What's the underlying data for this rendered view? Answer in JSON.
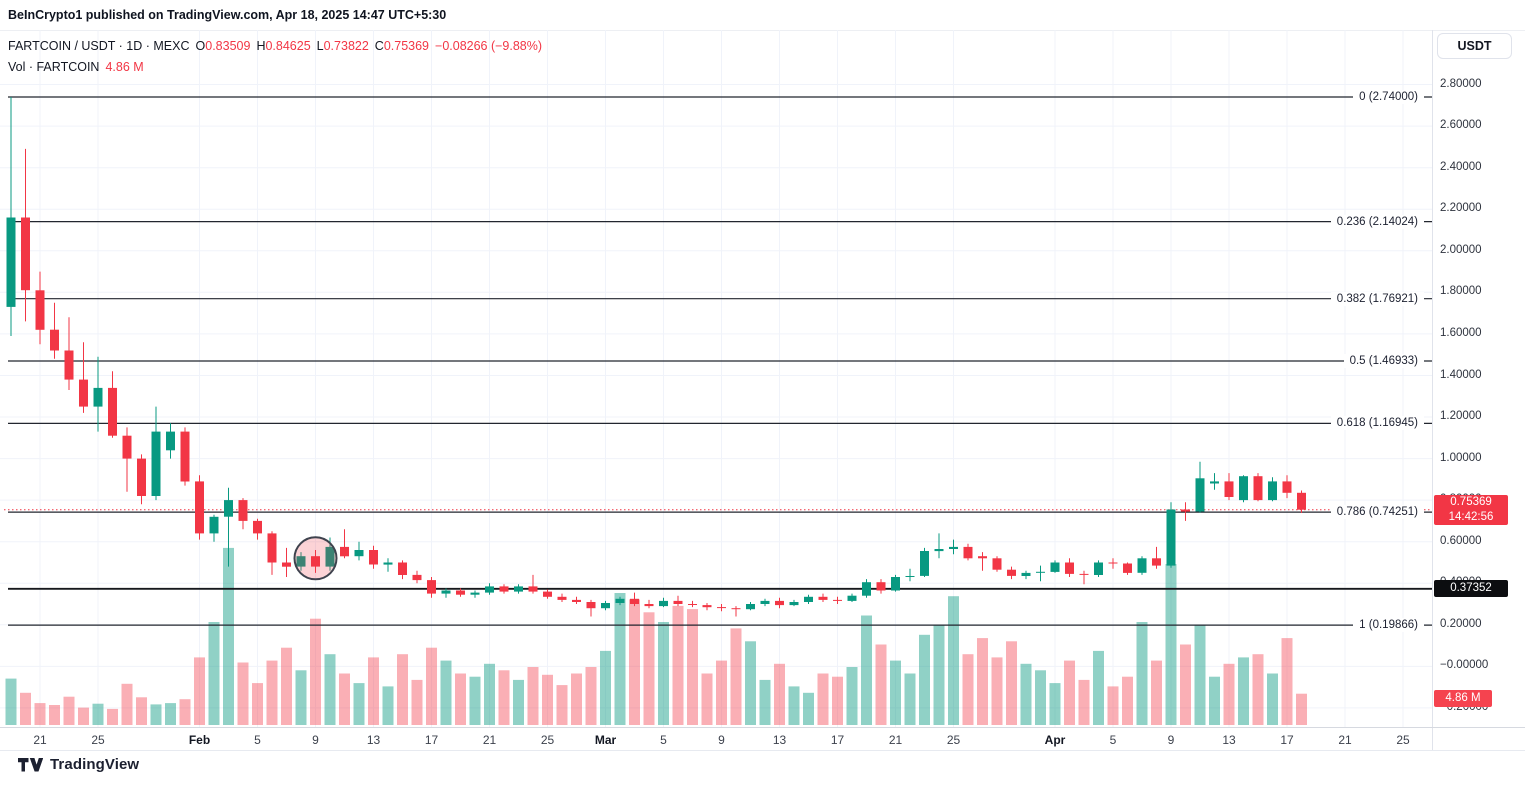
{
  "attribution": "BeInCrypto1 published on TradingView.com, Apr 18, 2025 14:47 UTC+5:30",
  "toolbar": {
    "currency": "USDT"
  },
  "legend": {
    "symbol": "FARTCOIN / USDT · 1D · MEXC",
    "o_label": "O",
    "o": "0.83509",
    "h_label": "H",
    "h": "0.84625",
    "l_label": "L",
    "l": "0.73822",
    "c_label": "C",
    "c": "0.75369",
    "change": "−0.08266 (−9.88%)",
    "vol_label": "Vol · FARTCOIN",
    "vol_value": "4.86 M"
  },
  "logo": {
    "text": "TradingView"
  },
  "colors": {
    "up": "#089981",
    "down": "#f23645",
    "vol_up": "rgba(8,153,129,0.45)",
    "vol_down": "rgba(242,54,69,0.40)",
    "grid": "#f0f3fa",
    "fib_line": "#22262f",
    "hline": "#16181d",
    "price_line": "#f23645",
    "annotation_fill": "rgba(242,54,69,0.22)",
    "annotation_stroke": "#3f434e"
  },
  "chart_data": {
    "type": "candlestick",
    "title": "FARTCOIN / USDT · 1D · MEXC",
    "symbol": "FARTCOIN/USDT",
    "interval": "1D",
    "exchange": "MEXC",
    "legend_position": "top-left",
    "grid": true,
    "ylim": [
      -0.29,
      3.06
    ],
    "last": {
      "open": 0.83509,
      "high": 0.84625,
      "low": 0.73822,
      "close": 0.75369,
      "change": -0.08266,
      "change_pct": -9.88,
      "volume_m": 4.86,
      "countdown": "14:42:56"
    },
    "price_axis_labels": [
      {
        "text": "2.80000",
        "price": 2.8
      },
      {
        "text": "2.60000",
        "price": 2.6
      },
      {
        "text": "2.40000",
        "price": 2.4
      },
      {
        "text": "2.20000",
        "price": 2.2
      },
      {
        "text": "2.00000",
        "price": 2.0
      },
      {
        "text": "1.80000",
        "price": 1.8
      },
      {
        "text": "1.60000",
        "price": 1.6
      },
      {
        "text": "1.40000",
        "price": 1.4
      },
      {
        "text": "1.20000",
        "price": 1.2
      },
      {
        "text": "1.00000",
        "price": 1.0
      },
      {
        "text": "0.80000",
        "price": 0.8
      },
      {
        "text": "0.60000",
        "price": 0.6
      },
      {
        "text": "0.40000",
        "price": 0.4
      },
      {
        "text": "0.20000",
        "price": 0.2
      },
      {
        "text": "−0.00000",
        "price": 0.0
      },
      {
        "text": "−0.20000",
        "price": -0.2
      }
    ],
    "time_ticks": [
      {
        "label": "21",
        "i": 2,
        "bold": false
      },
      {
        "label": "25",
        "i": 6,
        "bold": false
      },
      {
        "label": "Feb",
        "i": 13,
        "bold": true
      },
      {
        "label": "5",
        "i": 17,
        "bold": false
      },
      {
        "label": "9",
        "i": 21,
        "bold": false
      },
      {
        "label": "13",
        "i": 25,
        "bold": false
      },
      {
        "label": "17",
        "i": 29,
        "bold": false
      },
      {
        "label": "21",
        "i": 33,
        "bold": false
      },
      {
        "label": "25",
        "i": 37,
        "bold": false
      },
      {
        "label": "Mar",
        "i": 41,
        "bold": true
      },
      {
        "label": "5",
        "i": 45,
        "bold": false
      },
      {
        "label": "9",
        "i": 49,
        "bold": false
      },
      {
        "label": "13",
        "i": 53,
        "bold": false
      },
      {
        "label": "17",
        "i": 57,
        "bold": false
      },
      {
        "label": "21",
        "i": 61,
        "bold": false
      },
      {
        "label": "25",
        "i": 65,
        "bold": false
      },
      {
        "label": "Apr",
        "i": 72,
        "bold": true
      },
      {
        "label": "5",
        "i": 76,
        "bold": false
      },
      {
        "label": "9",
        "i": 80,
        "bold": false
      },
      {
        "label": "13",
        "i": 84,
        "bold": false
      },
      {
        "label": "17",
        "i": 88,
        "bold": false
      },
      {
        "label": "21",
        "i": 92,
        "bold": false
      },
      {
        "label": "25",
        "i": 96,
        "bold": false
      }
    ],
    "fib_levels": [
      {
        "label": "0 (2.74000)",
        "level": 0,
        "price": 2.74
      },
      {
        "label": "0.236 (2.14024)",
        "level": 0.236,
        "price": 2.14024
      },
      {
        "label": "0.382 (1.76921)",
        "level": 0.382,
        "price": 1.76921
      },
      {
        "label": "0.5 (1.46933)",
        "level": 0.5,
        "price": 1.46933
      },
      {
        "label": "0.618 (1.16945)",
        "level": 0.618,
        "price": 1.16945
      },
      {
        "label": "0.786 (0.74251)",
        "level": 0.786,
        "price": 0.74251
      },
      {
        "label": "1 (0.19866)",
        "level": 1,
        "price": 0.19866
      }
    ],
    "hline": {
      "price": 0.37352,
      "label": "0.37352"
    },
    "price_line": {
      "price": 0.75369,
      "badge_lines": [
        "0.75369",
        "14:42:56"
      ]
    },
    "volume_badge": "4.86 M",
    "annotation": {
      "type": "circle",
      "candle_index": 21,
      "price": 0.52,
      "radius": 21
    },
    "columns": [
      "date",
      "open",
      "high",
      "low",
      "close",
      "volume_m"
    ],
    "candles": [
      [
        "Jan 19",
        1.73,
        2.74,
        1.59,
        2.16,
        7.2
      ],
      [
        "Jan 20",
        2.16,
        2.49,
        1.66,
        1.81,
        5.0
      ],
      [
        "Jan 21",
        1.81,
        1.9,
        1.55,
        1.62,
        3.4
      ],
      [
        "Jan 22",
        1.62,
        1.75,
        1.48,
        1.52,
        3.1
      ],
      [
        "Jan 23",
        1.52,
        1.68,
        1.33,
        1.38,
        4.4
      ],
      [
        "Jan 24",
        1.38,
        1.56,
        1.22,
        1.25,
        2.7
      ],
      [
        "Jan 25",
        1.25,
        1.49,
        1.13,
        1.34,
        3.3
      ],
      [
        "Jan 26",
        1.34,
        1.42,
        1.1,
        1.11,
        2.5
      ],
      [
        "Jan 27",
        1.11,
        1.15,
        0.84,
        1.0,
        6.4
      ],
      [
        "Jan 28",
        1.0,
        1.02,
        0.78,
        0.82,
        4.3
      ],
      [
        "Jan 29",
        0.82,
        1.25,
        0.8,
        1.13,
        3.2
      ],
      [
        "Jan 30",
        1.04,
        1.17,
        1.0,
        1.13,
        3.4
      ],
      [
        "Jan 31",
        1.13,
        1.15,
        0.87,
        0.89,
        4.0
      ],
      [
        "Feb 1",
        0.89,
        0.92,
        0.61,
        0.64,
        10.5
      ],
      [
        "Feb 2",
        0.64,
        0.73,
        0.6,
        0.72,
        16.0
      ],
      [
        "Feb 3",
        0.72,
        0.86,
        0.48,
        0.8,
        27.5
      ],
      [
        "Feb 4",
        0.8,
        0.81,
        0.66,
        0.7,
        9.7
      ],
      [
        "Feb 5",
        0.7,
        0.71,
        0.61,
        0.64,
        6.5
      ],
      [
        "Feb 6",
        0.64,
        0.65,
        0.44,
        0.5,
        10.0
      ],
      [
        "Feb 7",
        0.5,
        0.57,
        0.43,
        0.48,
        12.0
      ],
      [
        "Feb 8",
        0.48,
        0.55,
        0.46,
        0.53,
        8.5
      ],
      [
        "Feb 9",
        0.53,
        0.56,
        0.45,
        0.48,
        16.5
      ],
      [
        "Feb 10",
        0.48,
        0.62,
        0.46,
        0.575,
        11.0
      ],
      [
        "Feb 11",
        0.575,
        0.66,
        0.52,
        0.53,
        8.0
      ],
      [
        "Feb 12",
        0.53,
        0.6,
        0.51,
        0.56,
        6.5
      ],
      [
        "Feb 13",
        0.56,
        0.58,
        0.47,
        0.49,
        10.5
      ],
      [
        "Feb 14",
        0.49,
        0.52,
        0.455,
        0.5,
        6.0
      ],
      [
        "Feb 15",
        0.5,
        0.51,
        0.42,
        0.44,
        11.0
      ],
      [
        "Feb 16",
        0.44,
        0.46,
        0.4,
        0.415,
        7.0
      ],
      [
        "Feb 17",
        0.415,
        0.43,
        0.33,
        0.35,
        12.0
      ],
      [
        "Feb 18",
        0.35,
        0.375,
        0.33,
        0.365,
        10.0
      ],
      [
        "Feb 19",
        0.365,
        0.375,
        0.335,
        0.345,
        8.0
      ],
      [
        "Feb 20",
        0.345,
        0.365,
        0.33,
        0.355,
        7.5
      ],
      [
        "Feb 21",
        0.355,
        0.4,
        0.345,
        0.385,
        9.5
      ],
      [
        "Feb 22",
        0.385,
        0.395,
        0.35,
        0.36,
        8.5
      ],
      [
        "Feb 23",
        0.36,
        0.395,
        0.35,
        0.385,
        7.0
      ],
      [
        "Feb 24",
        0.385,
        0.44,
        0.35,
        0.36,
        9.0
      ],
      [
        "Feb 25",
        0.36,
        0.37,
        0.325,
        0.335,
        7.8
      ],
      [
        "Feb 26",
        0.335,
        0.35,
        0.31,
        0.32,
        6.2
      ],
      [
        "Feb 27",
        0.32,
        0.335,
        0.3,
        0.31,
        8.0
      ],
      [
        "Feb 28",
        0.31,
        0.32,
        0.24,
        0.28,
        9.0
      ],
      [
        "Mar 1",
        0.28,
        0.315,
        0.27,
        0.305,
        11.5
      ],
      [
        "Mar 2",
        0.305,
        0.335,
        0.295,
        0.325,
        20.5
      ],
      [
        "Mar 3",
        0.325,
        0.355,
        0.29,
        0.3,
        19.5
      ],
      [
        "Mar 4",
        0.3,
        0.32,
        0.28,
        0.29,
        17.5
      ],
      [
        "Mar 5",
        0.29,
        0.33,
        0.285,
        0.315,
        16.0
      ],
      [
        "Mar 6",
        0.315,
        0.34,
        0.29,
        0.3,
        18.5
      ],
      [
        "Mar 7",
        0.3,
        0.315,
        0.285,
        0.295,
        18.0
      ],
      [
        "Mar 8",
        0.295,
        0.305,
        0.27,
        0.285,
        8.0
      ],
      [
        "Mar 9",
        0.285,
        0.3,
        0.265,
        0.28,
        10.0
      ],
      [
        "Mar 10",
        0.28,
        0.29,
        0.24,
        0.275,
        15.0
      ],
      [
        "Mar 11",
        0.275,
        0.31,
        0.27,
        0.3,
        13.0
      ],
      [
        "Mar 12",
        0.3,
        0.325,
        0.29,
        0.315,
        7.0
      ],
      [
        "Mar 13",
        0.315,
        0.33,
        0.28,
        0.295,
        9.5
      ],
      [
        "Mar 14",
        0.295,
        0.32,
        0.29,
        0.31,
        6.0
      ],
      [
        "Mar 15",
        0.31,
        0.345,
        0.3,
        0.335,
        5.0
      ],
      [
        "Mar 16",
        0.335,
        0.35,
        0.31,
        0.32,
        8.0
      ],
      [
        "Mar 17",
        0.32,
        0.335,
        0.3,
        0.315,
        7.5
      ],
      [
        "Mar 18",
        0.315,
        0.35,
        0.31,
        0.34,
        9.0
      ],
      [
        "Mar 19",
        0.34,
        0.42,
        0.33,
        0.405,
        17.0
      ],
      [
        "Mar 20",
        0.405,
        0.42,
        0.35,
        0.365,
        12.5
      ],
      [
        "Mar 21",
        0.365,
        0.44,
        0.36,
        0.43,
        10.0
      ],
      [
        "Mar 22",
        0.43,
        0.47,
        0.41,
        0.435,
        8.0
      ],
      [
        "Mar 23",
        0.435,
        0.57,
        0.43,
        0.555,
        14.0
      ],
      [
        "Mar 24",
        0.555,
        0.64,
        0.52,
        0.565,
        15.5
      ],
      [
        "Mar 25",
        0.565,
        0.61,
        0.54,
        0.575,
        20.0
      ],
      [
        "Mar 26",
        0.575,
        0.59,
        0.51,
        0.52,
        11.0
      ],
      [
        "Mar 27",
        0.53,
        0.55,
        0.46,
        0.52,
        13.5
      ],
      [
        "Mar 28",
        0.52,
        0.53,
        0.455,
        0.465,
        10.5
      ],
      [
        "Mar 29",
        0.465,
        0.48,
        0.42,
        0.435,
        13.0
      ],
      [
        "Mar 30",
        0.435,
        0.46,
        0.42,
        0.45,
        9.5
      ],
      [
        "Mar 31",
        0.45,
        0.485,
        0.41,
        0.455,
        8.5
      ],
      [
        "Apr 1",
        0.455,
        0.51,
        0.45,
        0.5,
        6.5
      ],
      [
        "Apr 2",
        0.5,
        0.52,
        0.43,
        0.445,
        10.0
      ],
      [
        "Apr 3",
        0.445,
        0.46,
        0.395,
        0.44,
        7.0
      ],
      [
        "Apr 4",
        0.44,
        0.51,
        0.43,
        0.5,
        11.5
      ],
      [
        "Apr 5",
        0.5,
        0.52,
        0.47,
        0.495,
        6.0
      ],
      [
        "Apr 6",
        0.495,
        0.5,
        0.44,
        0.45,
        7.5
      ],
      [
        "Apr 7",
        0.45,
        0.53,
        0.44,
        0.52,
        16.0
      ],
      [
        "Apr 8",
        0.52,
        0.575,
        0.47,
        0.485,
        10.0
      ],
      [
        "Apr 9",
        0.485,
        0.79,
        0.475,
        0.755,
        25.0
      ],
      [
        "Apr 10",
        0.755,
        0.79,
        0.7,
        0.745,
        12.5
      ],
      [
        "Apr 11",
        0.745,
        0.985,
        0.74,
        0.905,
        15.5
      ],
      [
        "Apr 12",
        0.88,
        0.93,
        0.85,
        0.89,
        7.5
      ],
      [
        "Apr 13",
        0.89,
        0.93,
        0.8,
        0.815,
        9.5
      ],
      [
        "Apr 14",
        0.8,
        0.92,
        0.79,
        0.915,
        10.5
      ],
      [
        "Apr 15",
        0.915,
        0.93,
        0.795,
        0.8,
        11.0
      ],
      [
        "Apr 16",
        0.8,
        0.91,
        0.795,
        0.89,
        8.0
      ],
      [
        "Apr 17",
        0.89,
        0.92,
        0.81,
        0.835,
        13.5
      ],
      [
        "Apr 18",
        0.83509,
        0.84625,
        0.73822,
        0.75369,
        4.86
      ]
    ]
  }
}
